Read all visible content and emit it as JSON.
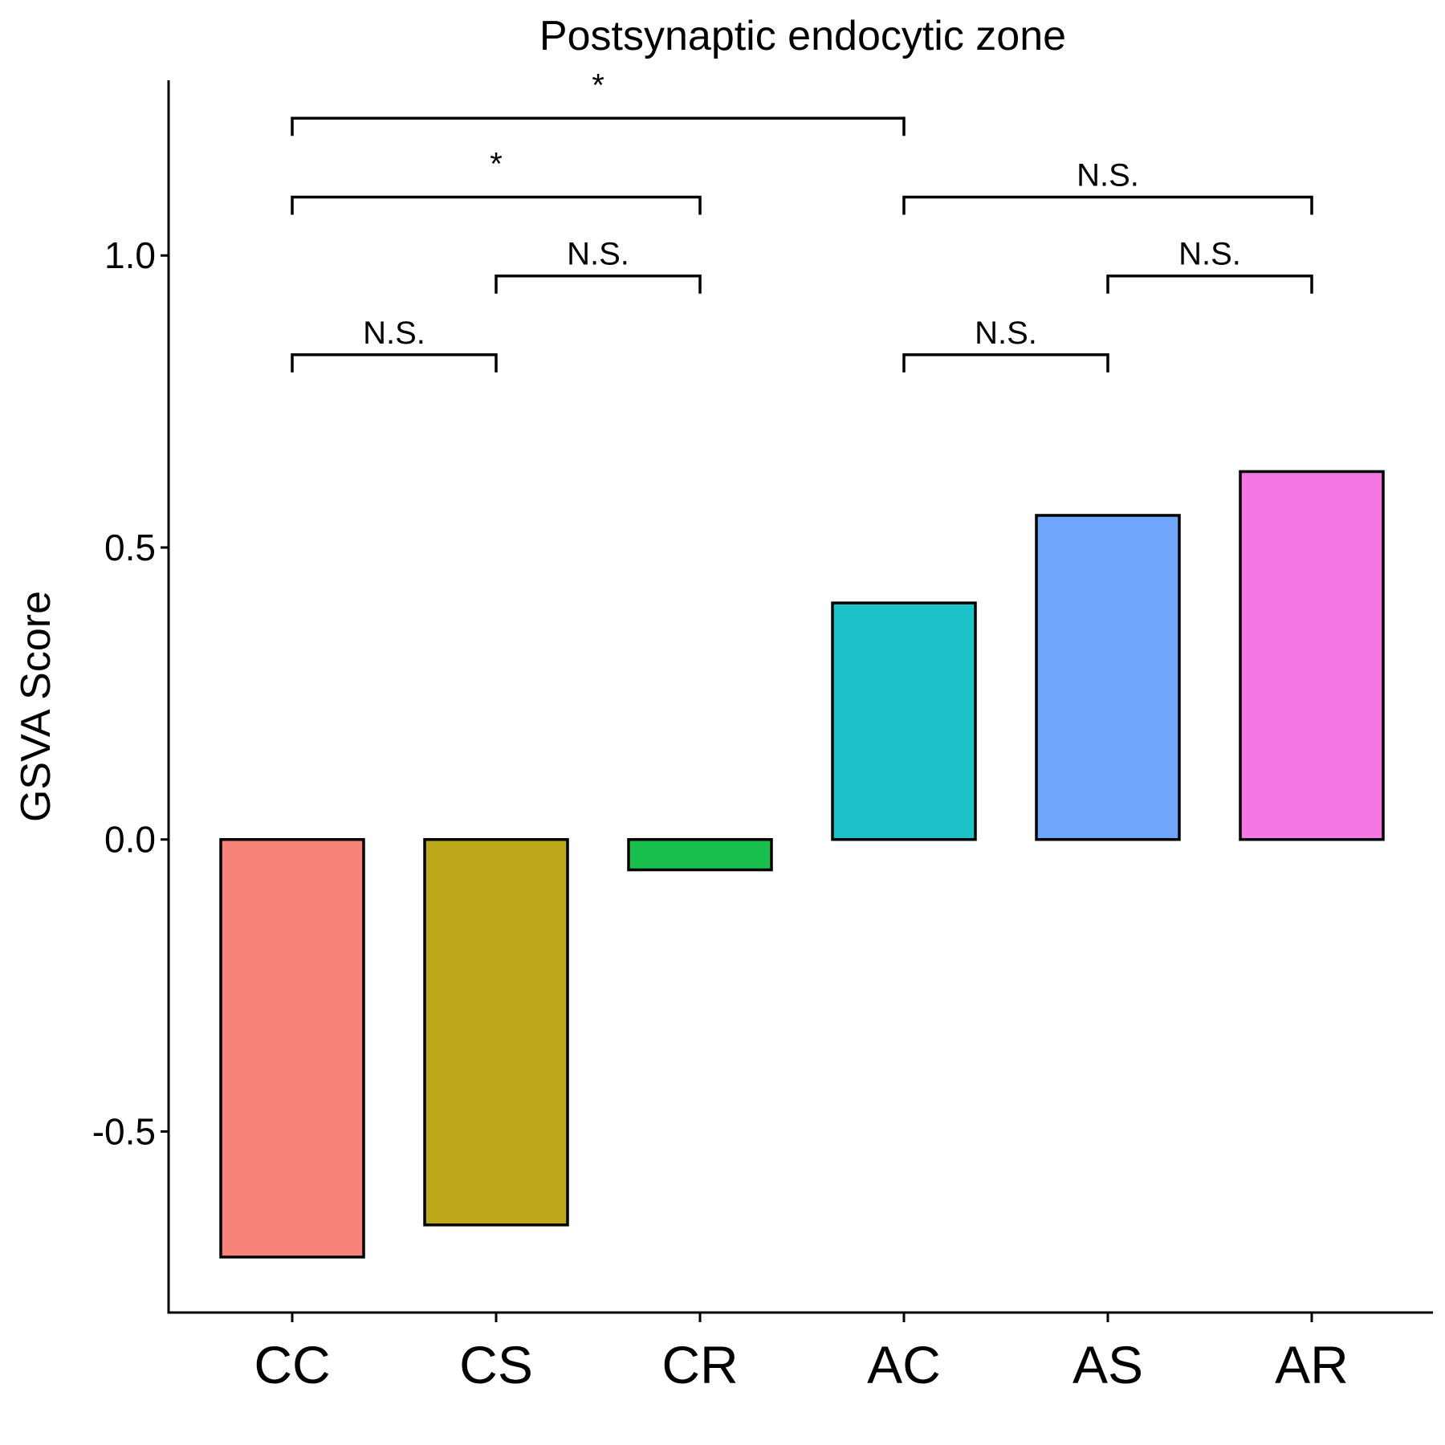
{
  "chart_data": {
    "type": "bar",
    "title": "Postsynaptic endocytic zone",
    "xlabel": "",
    "ylabel": "GSVA Score",
    "categories": [
      "CC",
      "CS",
      "CR",
      "AC",
      "AS",
      "AR"
    ],
    "values": [
      -0.715,
      -0.66,
      -0.052,
      0.405,
      0.555,
      0.63
    ],
    "colors": [
      "#F8837B",
      "#BDA819",
      "#18BF4C",
      "#1CC4CA",
      "#70A5FC",
      "#F577E3"
    ],
    "ylim": [
      -0.81,
      1.3
    ],
    "yticks": [
      -0.5,
      0.0,
      0.5,
      1.0
    ],
    "ytick_labels": [
      "-0.5",
      "0.0",
      "0.5",
      "1.0"
    ],
    "grid": false,
    "legend": "none",
    "comparisons": [
      {
        "from": "CC",
        "to": "CS",
        "label": "N.S.",
        "y": 0.83
      },
      {
        "from": "CS",
        "to": "CR",
        "label": "N.S.",
        "y": 0.965
      },
      {
        "from": "CC",
        "to": "CR",
        "label": "*",
        "y": 1.1
      },
      {
        "from": "CC",
        "to": "AC",
        "label": "*",
        "y": 1.235
      },
      {
        "from": "AC",
        "to": "AS",
        "label": "N.S.",
        "y": 0.83
      },
      {
        "from": "AS",
        "to": "AR",
        "label": "N.S.",
        "y": 0.965
      },
      {
        "from": "AC",
        "to": "AR",
        "label": "N.S.",
        "y": 1.1
      }
    ]
  }
}
